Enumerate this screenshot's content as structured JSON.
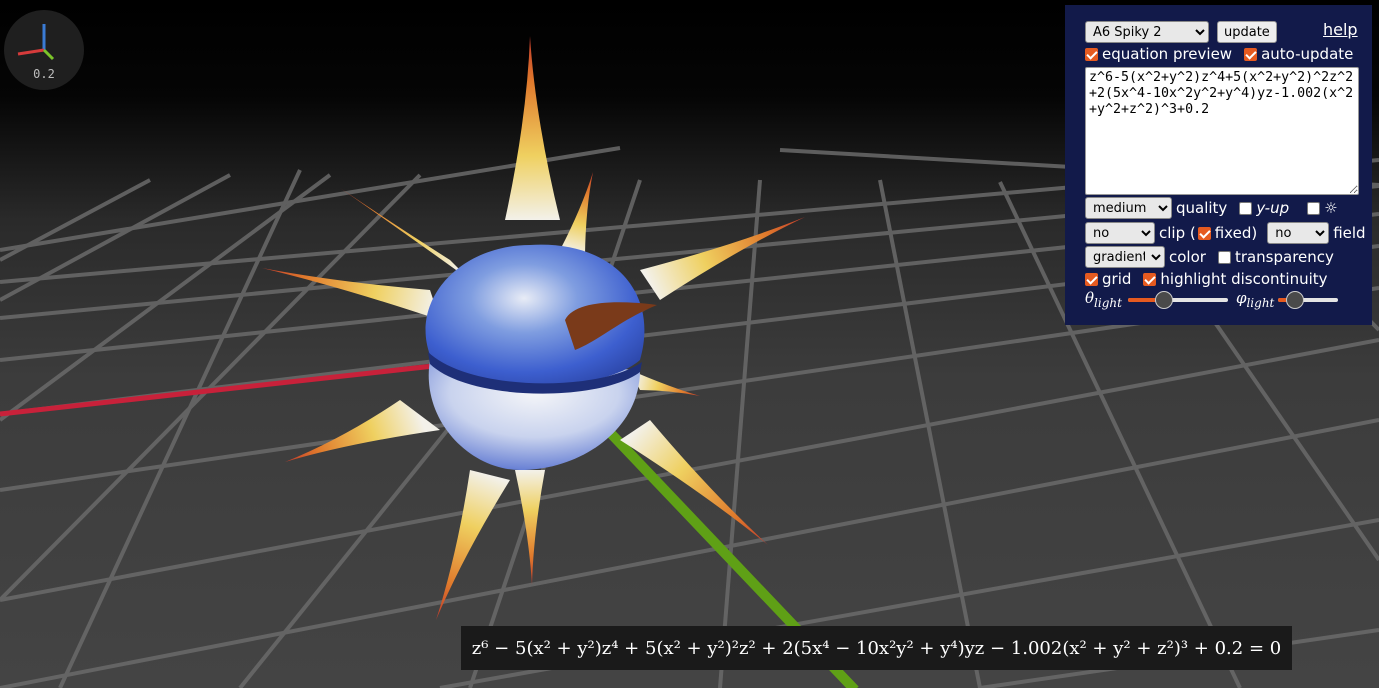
{
  "viewport": {
    "axis_scale": "0.2",
    "colors": {
      "background_top": "#000000",
      "floor": "#404040",
      "grid_line": "#6b6b6b",
      "x_axis": "#c8213a",
      "y_axis": "#5fa016",
      "surface_main": "#3a5ccc",
      "surface_mid": "#f2f4f8",
      "surface_tip": "#d9462a",
      "surface_warm": "#efd060"
    }
  },
  "panel": {
    "preset_select": {
      "selected": "A6 Spiky 2"
    },
    "update_label": "update",
    "help_label": "help",
    "equation_preview": {
      "label": "equation preview",
      "checked": true
    },
    "auto_update": {
      "label": "auto-update",
      "checked": true
    },
    "equation_text": "z^6-5(x^2+y^2)z^4+5(x^2+y^2)^2z^2+2(5x^4-10x^2y^2+y^4)yz-1.002(x^2+y^2+z^2)^3+0.2",
    "quality": {
      "selected": "medium",
      "label": "quality"
    },
    "y_up": {
      "label": "y-up",
      "checked": false
    },
    "sun": {
      "label": "☼",
      "checked": false
    },
    "clip": {
      "selected": "no",
      "label": "clip ("
    },
    "fixed": {
      "label": "fixed)",
      "checked": true
    },
    "field": {
      "selected": "no",
      "label": "field"
    },
    "color": {
      "selected": "gradient",
      "label": "color"
    },
    "transparency": {
      "label": "transparency",
      "checked": false
    },
    "grid": {
      "label": "grid",
      "checked": true
    },
    "highlight": {
      "label": "highlight discontinuity",
      "checked": true
    },
    "theta_light": {
      "symbol": "θ",
      "subscript": "light",
      "value": 0.36
    },
    "phi_light": {
      "symbol": "φ",
      "subscript": "light",
      "value": 0.27
    },
    "accent": "#e55a20",
    "background": "#121a4a"
  },
  "equation_display": {
    "latex_text": "z⁶ − 5(x² + y²)z⁴ + 5(x² + y²)²z² + 2(5x⁴ − 10x²y² + y⁴)yz − 1.002(x² + y² + z²)³ + 0.2 = 0"
  }
}
